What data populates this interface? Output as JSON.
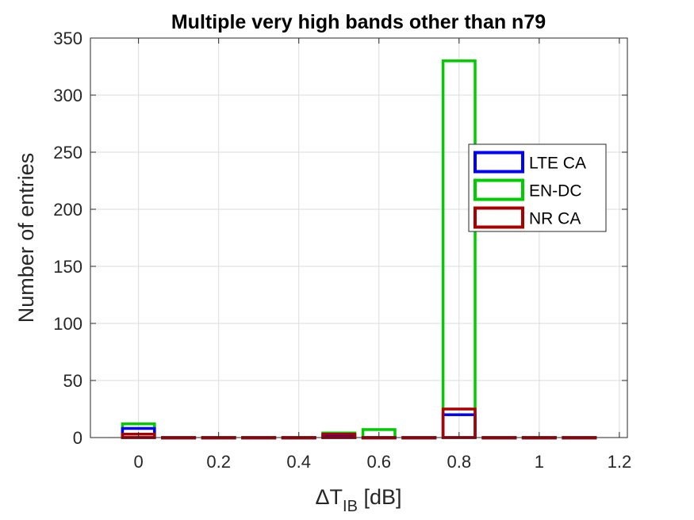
{
  "chart_data": {
    "type": "bar",
    "style": "histogram-outline",
    "title": "Multiple very high bands other than n79",
    "xlabel": {
      "base": "ΔT",
      "subscript": "IB",
      "suffix": " [dB]"
    },
    "ylabel": "Number of entries",
    "xlim": [
      -0.12,
      1.22
    ],
    "ylim": [
      0,
      350
    ],
    "xticks": [
      0,
      0.2,
      0.4,
      0.6,
      0.8,
      1,
      1.2
    ],
    "xtick_labels": [
      "0",
      "0.2",
      "0.4",
      "0.6",
      "0.8",
      "1",
      "1.2"
    ],
    "yticks": [
      0,
      50,
      100,
      150,
      200,
      250,
      300,
      350
    ],
    "ytick_labels": [
      "0",
      "50",
      "100",
      "150",
      "200",
      "250",
      "300",
      "350"
    ],
    "grid": true,
    "legend_position": "right",
    "bin_width": 0.08,
    "x": [
      0,
      0.1,
      0.2,
      0.3,
      0.4,
      0.5,
      0.6,
      0.7,
      0.8,
      0.9,
      1.0,
      1.1
    ],
    "series": [
      {
        "name": "LTE CA",
        "color": "#0000ff",
        "values": [
          8,
          0,
          0,
          0,
          0,
          2,
          0,
          0,
          20,
          0,
          0,
          0
        ]
      },
      {
        "name": "EN-DC",
        "color": "#00cc00",
        "values": [
          12,
          0,
          0,
          0,
          0,
          4,
          7,
          0,
          330,
          0,
          0,
          0
        ]
      },
      {
        "name": "NR CA",
        "color": "#aa0000",
        "values": [
          3,
          0,
          0,
          0,
          0,
          3,
          0,
          0,
          25,
          0,
          0,
          0
        ]
      }
    ]
  }
}
